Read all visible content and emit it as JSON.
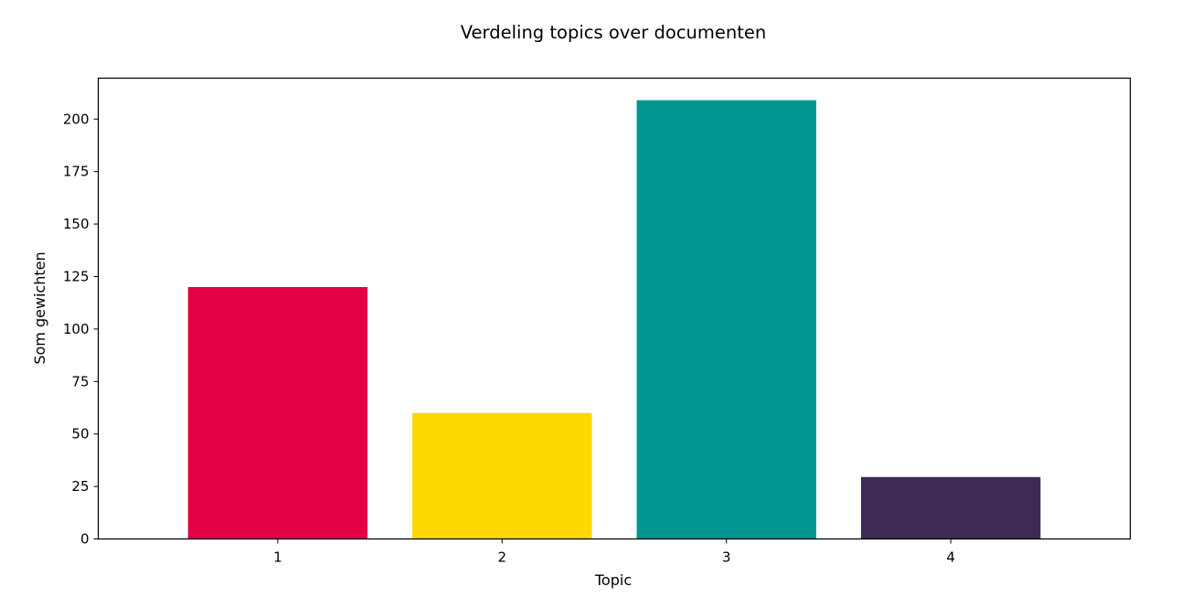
{
  "chart_data": {
    "type": "bar",
    "title": "Verdeling topics over documenten",
    "xlabel": "Topic",
    "ylabel": "Som gewichten",
    "categories": [
      "1",
      "2",
      "3",
      "4"
    ],
    "values": [
      120,
      60,
      209,
      29.5
    ],
    "colors": [
      "#e30045",
      "#ffd800",
      "#009690",
      "#3e2b55"
    ],
    "ylim": [
      0,
      219.5
    ],
    "yticks": [
      0,
      25,
      50,
      75,
      100,
      125,
      150,
      175,
      200
    ],
    "grid": false,
    "legend": "none"
  }
}
